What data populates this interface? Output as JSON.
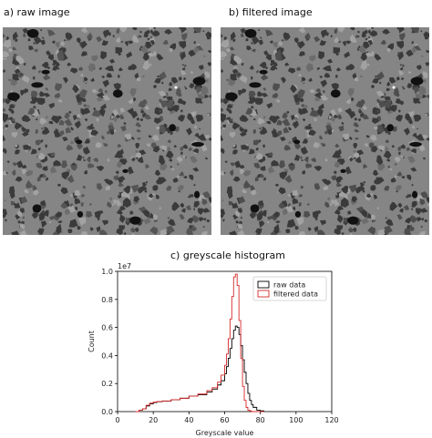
{
  "panels": {
    "raw_label": "a) raw image",
    "filtered_label": "b) filtered image",
    "histogram_title": "c) greyscale histogram"
  },
  "chart_data": {
    "type": "line",
    "title": "c) greyscale histogram",
    "xlabel": "Greyscale value",
    "ylabel": "Count",
    "xlim": [
      0,
      120
    ],
    "ylim": [
      0,
      1.0
    ],
    "y_multiplier": "1e7",
    "xticks": [
      "0",
      "20",
      "40",
      "60",
      "80",
      "100",
      "120"
    ],
    "yticks": [
      "0.0",
      "0.2",
      "0.4",
      "0.6",
      "0.8",
      "1.0"
    ],
    "grid": false,
    "legend_position": "top-right",
    "x": [
      10,
      12,
      14,
      16,
      18,
      20,
      22,
      25,
      30,
      35,
      40,
      45,
      50,
      53,
      56,
      58,
      60,
      61,
      62,
      63,
      64,
      65,
      66,
      67,
      68,
      69,
      70,
      71,
      72,
      73,
      74,
      75,
      76,
      78,
      80,
      82
    ],
    "series": [
      {
        "name": "raw data",
        "color": "#000000",
        "values": [
          0.0,
          0.01,
          0.02,
          0.04,
          0.055,
          0.065,
          0.07,
          0.075,
          0.085,
          0.095,
          0.11,
          0.12,
          0.14,
          0.16,
          0.19,
          0.22,
          0.27,
          0.32,
          0.38,
          0.45,
          0.52,
          0.58,
          0.61,
          0.6,
          0.55,
          0.47,
          0.37,
          0.28,
          0.2,
          0.13,
          0.08,
          0.05,
          0.03,
          0.01,
          0.005,
          0.0
        ]
      },
      {
        "name": "filtered data",
        "color": "#d62728",
        "values": [
          0.0,
          0.01,
          0.02,
          0.045,
          0.06,
          0.068,
          0.072,
          0.076,
          0.085,
          0.095,
          0.11,
          0.125,
          0.15,
          0.17,
          0.21,
          0.26,
          0.33,
          0.41,
          0.52,
          0.66,
          0.82,
          0.96,
          0.98,
          0.9,
          0.65,
          0.38,
          0.18,
          0.08,
          0.03,
          0.01,
          0.005,
          0.0,
          0.0,
          0.0,
          0.0,
          0.0
        ]
      }
    ]
  }
}
